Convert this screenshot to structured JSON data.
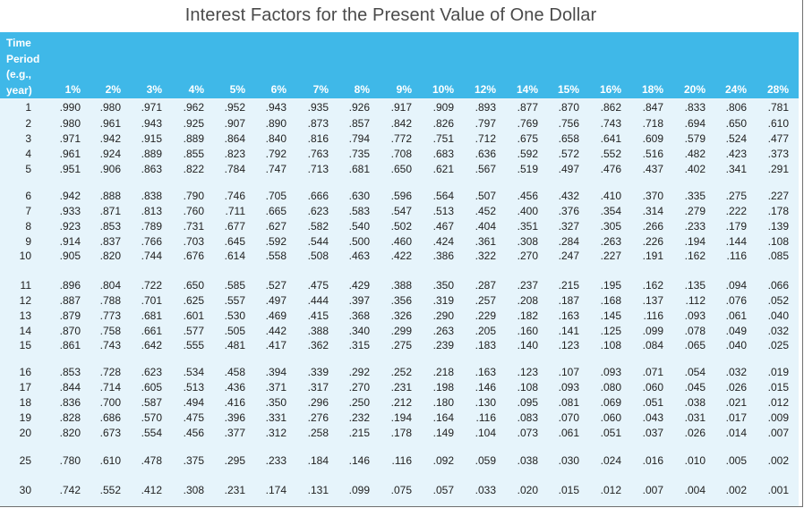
{
  "title": "Interest Factors for the Present Value of One Dollar",
  "time_period_label": [
    "Time",
    "Period",
    "(e.g.,",
    "year)"
  ],
  "columns": [
    "1%",
    "2%",
    "3%",
    "4%",
    "5%",
    "6%",
    "7%",
    "8%",
    "9%",
    "10%",
    "12%",
    "14%",
    "15%",
    "16%",
    "18%",
    "20%",
    "24%",
    "28%"
  ],
  "rows": [
    {
      "period": "1",
      "values": [
        ".990",
        ".980",
        ".971",
        ".962",
        ".952",
        ".943",
        ".935",
        ".926",
        ".917",
        ".909",
        ".893",
        ".877",
        ".870",
        ".862",
        ".847",
        ".833",
        ".806",
        ".781"
      ]
    },
    {
      "period": "2",
      "values": [
        ".980",
        ".961",
        ".943",
        ".925",
        ".907",
        ".890",
        ".873",
        ".857",
        ".842",
        ".826",
        ".797",
        ".769",
        ".756",
        ".743",
        ".718",
        ".694",
        ".650",
        ".610"
      ]
    },
    {
      "period": "3",
      "values": [
        ".971",
        ".942",
        ".915",
        ".889",
        ".864",
        ".840",
        ".816",
        ".794",
        ".772",
        ".751",
        ".712",
        ".675",
        ".658",
        ".641",
        ".609",
        ".579",
        ".524",
        ".477"
      ]
    },
    {
      "period": "4",
      "values": [
        ".961",
        ".924",
        ".889",
        ".855",
        ".823",
        ".792",
        ".763",
        ".735",
        ".708",
        ".683",
        ".636",
        ".592",
        ".572",
        ".552",
        ".516",
        ".482",
        ".423",
        ".373"
      ]
    },
    {
      "period": "5",
      "values": [
        ".951",
        ".906",
        ".863",
        ".822",
        ".784",
        ".747",
        ".713",
        ".681",
        ".650",
        ".621",
        ".567",
        ".519",
        ".497",
        ".476",
        ".437",
        ".402",
        ".341",
        ".291"
      ]
    },
    {
      "period": "6",
      "values": [
        ".942",
        ".888",
        ".838",
        ".790",
        ".746",
        ".705",
        ".666",
        ".630",
        ".596",
        ".564",
        ".507",
        ".456",
        ".432",
        ".410",
        ".370",
        ".335",
        ".275",
        ".227"
      ]
    },
    {
      "period": "7",
      "values": [
        ".933",
        ".871",
        ".813",
        ".760",
        ".711",
        ".665",
        ".623",
        ".583",
        ".547",
        ".513",
        ".452",
        ".400",
        ".376",
        ".354",
        ".314",
        ".279",
        ".222",
        ".178"
      ]
    },
    {
      "period": "8",
      "values": [
        ".923",
        ".853",
        ".789",
        ".731",
        ".677",
        ".627",
        ".582",
        ".540",
        ".502",
        ".467",
        ".404",
        ".351",
        ".327",
        ".305",
        ".266",
        ".233",
        ".179",
        ".139"
      ]
    },
    {
      "period": "9",
      "values": [
        ".914",
        ".837",
        ".766",
        ".703",
        ".645",
        ".592",
        ".544",
        ".500",
        ".460",
        ".424",
        ".361",
        ".308",
        ".284",
        ".263",
        ".226",
        ".194",
        ".144",
        ".108"
      ]
    },
    {
      "period": "10",
      "values": [
        ".905",
        ".820",
        ".744",
        ".676",
        ".614",
        ".558",
        ".508",
        ".463",
        ".422",
        ".386",
        ".322",
        ".270",
        ".247",
        ".227",
        ".191",
        ".162",
        ".116",
        ".085"
      ]
    },
    {
      "period": "11",
      "values": [
        ".896",
        ".804",
        ".722",
        ".650",
        ".585",
        ".527",
        ".475",
        ".429",
        ".388",
        ".350",
        ".287",
        ".237",
        ".215",
        ".195",
        ".162",
        ".135",
        ".094",
        ".066"
      ]
    },
    {
      "period": "12",
      "values": [
        ".887",
        ".788",
        ".701",
        ".625",
        ".557",
        ".497",
        ".444",
        ".397",
        ".356",
        ".319",
        ".257",
        ".208",
        ".187",
        ".168",
        ".137",
        ".112",
        ".076",
        ".052"
      ]
    },
    {
      "period": "13",
      "values": [
        ".879",
        ".773",
        ".681",
        ".601",
        ".530",
        ".469",
        ".415",
        ".368",
        ".326",
        ".290",
        ".229",
        ".182",
        ".163",
        ".145",
        ".116",
        ".093",
        ".061",
        ".040"
      ]
    },
    {
      "period": "14",
      "values": [
        ".870",
        ".758",
        ".661",
        ".577",
        ".505",
        ".442",
        ".388",
        ".340",
        ".299",
        ".263",
        ".205",
        ".160",
        ".141",
        ".125",
        ".099",
        ".078",
        ".049",
        ".032"
      ]
    },
    {
      "period": "15",
      "values": [
        ".861",
        ".743",
        ".642",
        ".555",
        ".481",
        ".417",
        ".362",
        ".315",
        ".275",
        ".239",
        ".183",
        ".140",
        ".123",
        ".108",
        ".084",
        ".065",
        ".040",
        ".025"
      ]
    },
    {
      "period": "16",
      "values": [
        ".853",
        ".728",
        ".623",
        ".534",
        ".458",
        ".394",
        ".339",
        ".292",
        ".252",
        ".218",
        ".163",
        ".123",
        ".107",
        ".093",
        ".071",
        ".054",
        ".032",
        ".019"
      ]
    },
    {
      "period": "17",
      "values": [
        ".844",
        ".714",
        ".605",
        ".513",
        ".436",
        ".371",
        ".317",
        ".270",
        ".231",
        ".198",
        ".146",
        ".108",
        ".093",
        ".080",
        ".060",
        ".045",
        ".026",
        ".015"
      ]
    },
    {
      "period": "18",
      "values": [
        ".836",
        ".700",
        ".587",
        ".494",
        ".416",
        ".350",
        ".296",
        ".250",
        ".212",
        ".180",
        ".130",
        ".095",
        ".081",
        ".069",
        ".051",
        ".038",
        ".021",
        ".012"
      ]
    },
    {
      "period": "19",
      "values": [
        ".828",
        ".686",
        ".570",
        ".475",
        ".396",
        ".331",
        ".276",
        ".232",
        ".194",
        ".164",
        ".116",
        ".083",
        ".070",
        ".060",
        ".043",
        ".031",
        ".017",
        ".009"
      ]
    },
    {
      "period": "20",
      "values": [
        ".820",
        ".673",
        ".554",
        ".456",
        ".377",
        ".312",
        ".258",
        ".215",
        ".178",
        ".149",
        ".104",
        ".073",
        ".061",
        ".051",
        ".037",
        ".026",
        ".014",
        ".007"
      ]
    },
    {
      "period": "25",
      "values": [
        ".780",
        ".610",
        ".478",
        ".375",
        ".295",
        ".233",
        ".184",
        ".146",
        ".116",
        ".092",
        ".059",
        ".038",
        ".030",
        ".024",
        ".016",
        ".010",
        ".005",
        ".002"
      ]
    },
    {
      "period": "30",
      "values": [
        ".742",
        ".552",
        ".412",
        ".308",
        ".231",
        ".174",
        ".131",
        ".099",
        ".075",
        ".057",
        ".033",
        ".020",
        ".015",
        ".012",
        ".007",
        ".004",
        ".002",
        ".001"
      ]
    }
  ],
  "colors": {
    "header_bg": "#3fb8e8",
    "body_bg": "#e6f4fb",
    "title_text": "#4a4a4a",
    "cell_text": "#222222"
  }
}
